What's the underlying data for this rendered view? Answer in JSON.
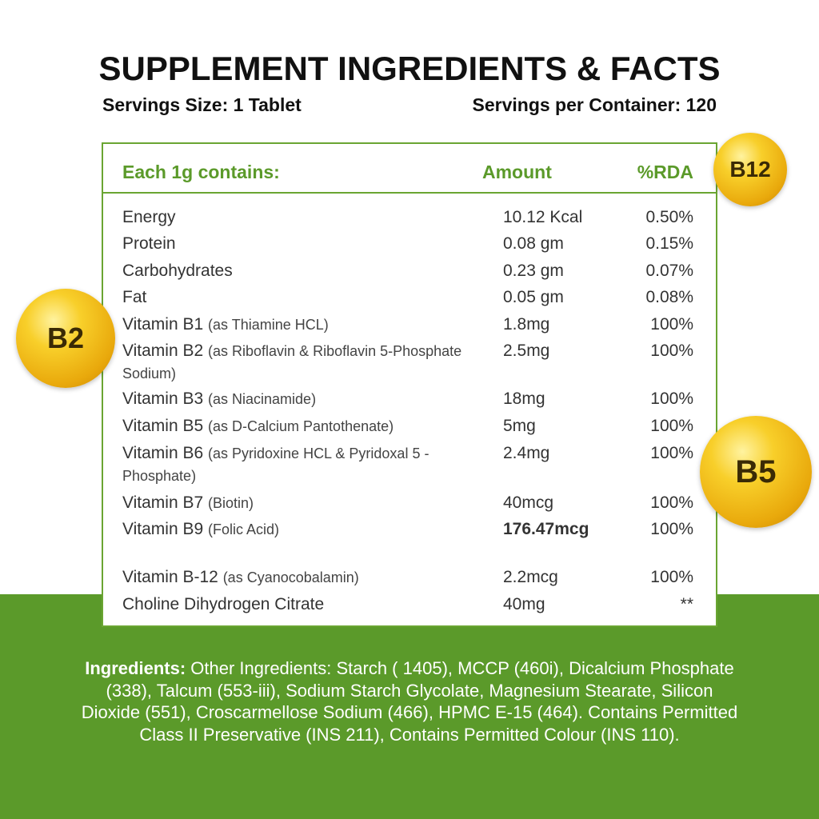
{
  "header": {
    "title": "SUPPLEMENT INGREDIENTS & FACTS",
    "servings_size": "Servings Size: 1 Tablet",
    "servings_per_container": "Servings per Container: 120"
  },
  "table": {
    "columns": [
      "Each 1g contains:",
      "Amount",
      "%RDA"
    ],
    "rows": [
      {
        "name": "Energy",
        "amount": "10.12 Kcal",
        "rda": "0.50%"
      },
      {
        "name": "Protein",
        "amount": "0.08 gm",
        "rda": "0.15%"
      },
      {
        "name": "Carbohydrates",
        "amount": "0.23 gm",
        "rda": "0.07%"
      },
      {
        "name": "Fat",
        "amount": "0.05 gm",
        "rda": "0.08%"
      },
      {
        "name": "Vitamin B1",
        "note": "(as Thiamine HCL)",
        "amount": "1.8mg",
        "rda": "100%"
      },
      {
        "name": "Vitamin B2",
        "note": "(as Riboflavin & Riboflavin 5-Phosphate Sodium)",
        "amount": "2.5mg",
        "rda": "100%"
      },
      {
        "name": "Vitamin B3",
        "note": "(as Niacinamide)",
        "amount": "18mg",
        "rda": "100%"
      },
      {
        "name": "Vitamin B5",
        "note": "(as D-Calcium Pantothenate)",
        "amount": "5mg",
        "rda": "100%"
      },
      {
        "name": "Vitamin B6",
        "note": "(as Pyridoxine HCL & Pyridoxal 5 - Phosphate)",
        "amount": "2.4mg",
        "rda": "100%"
      },
      {
        "name": "Vitamin B7",
        "note": "(Biotin)",
        "amount": "40mcg",
        "rda": "100%"
      },
      {
        "name": "Vitamin B9",
        "note": "(Folic Acid)",
        "amount": "176.47mcg",
        "rda": "100%",
        "bold": true
      },
      {
        "name": "Vitamin B-12",
        "note": "(as Cyanocobalamin)",
        "amount": "2.2mcg",
        "rda": "100%"
      },
      {
        "name": "Choline Dihydrogen Citrate",
        "amount": "40mg",
        "rda": "**"
      }
    ]
  },
  "badges": [
    "B12",
    "B2",
    "B5"
  ],
  "ingredients": {
    "label": "Ingredients:",
    "text": "Other Ingredients: Starch ( 1405), MCCP (460i), Dicalcium Phosphate (338), Talcum (553-iii), Sodium Starch Glycolate, Magnesium Stearate, Silicon Dioxide (551), Croscarmellose Sodium (466), HPMC E-15 (464). Contains Permitted Class II Preservative (INS 211), Contains Permitted Colour (INS 110)."
  }
}
